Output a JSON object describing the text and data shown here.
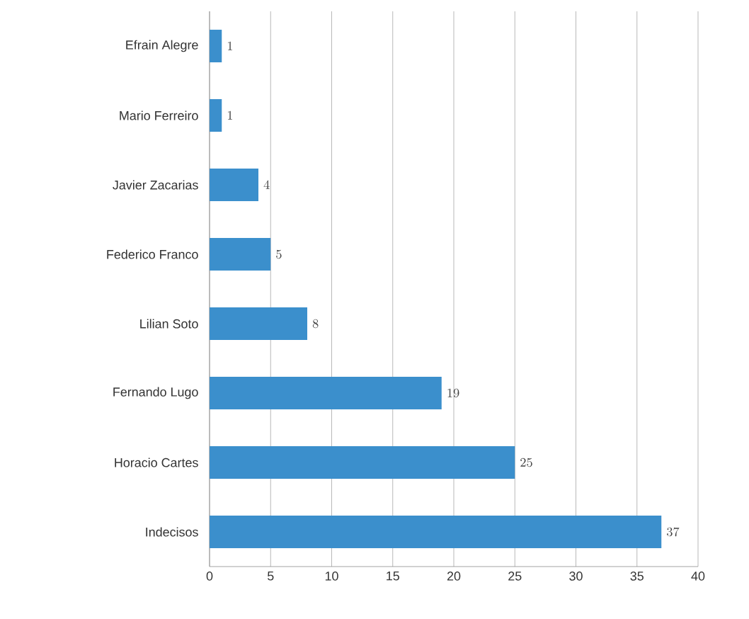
{
  "chart_data": {
    "type": "bar",
    "orientation": "horizontal",
    "categories": [
      "Efrain Alegre",
      "Mario Ferreiro",
      "Javier Zacarias",
      "Federico Franco",
      "Lilian Soto",
      "Fernando Lugo",
      "Horacio Cartes",
      "Indecisos"
    ],
    "values": [
      1,
      1,
      4,
      5,
      8,
      19,
      25,
      37
    ],
    "color": "#3b8fcc",
    "xlim": [
      0,
      40
    ],
    "xticks": [
      0,
      5,
      10,
      15,
      20,
      25,
      30,
      35,
      40
    ],
    "grid": "x",
    "data_labels": true
  }
}
